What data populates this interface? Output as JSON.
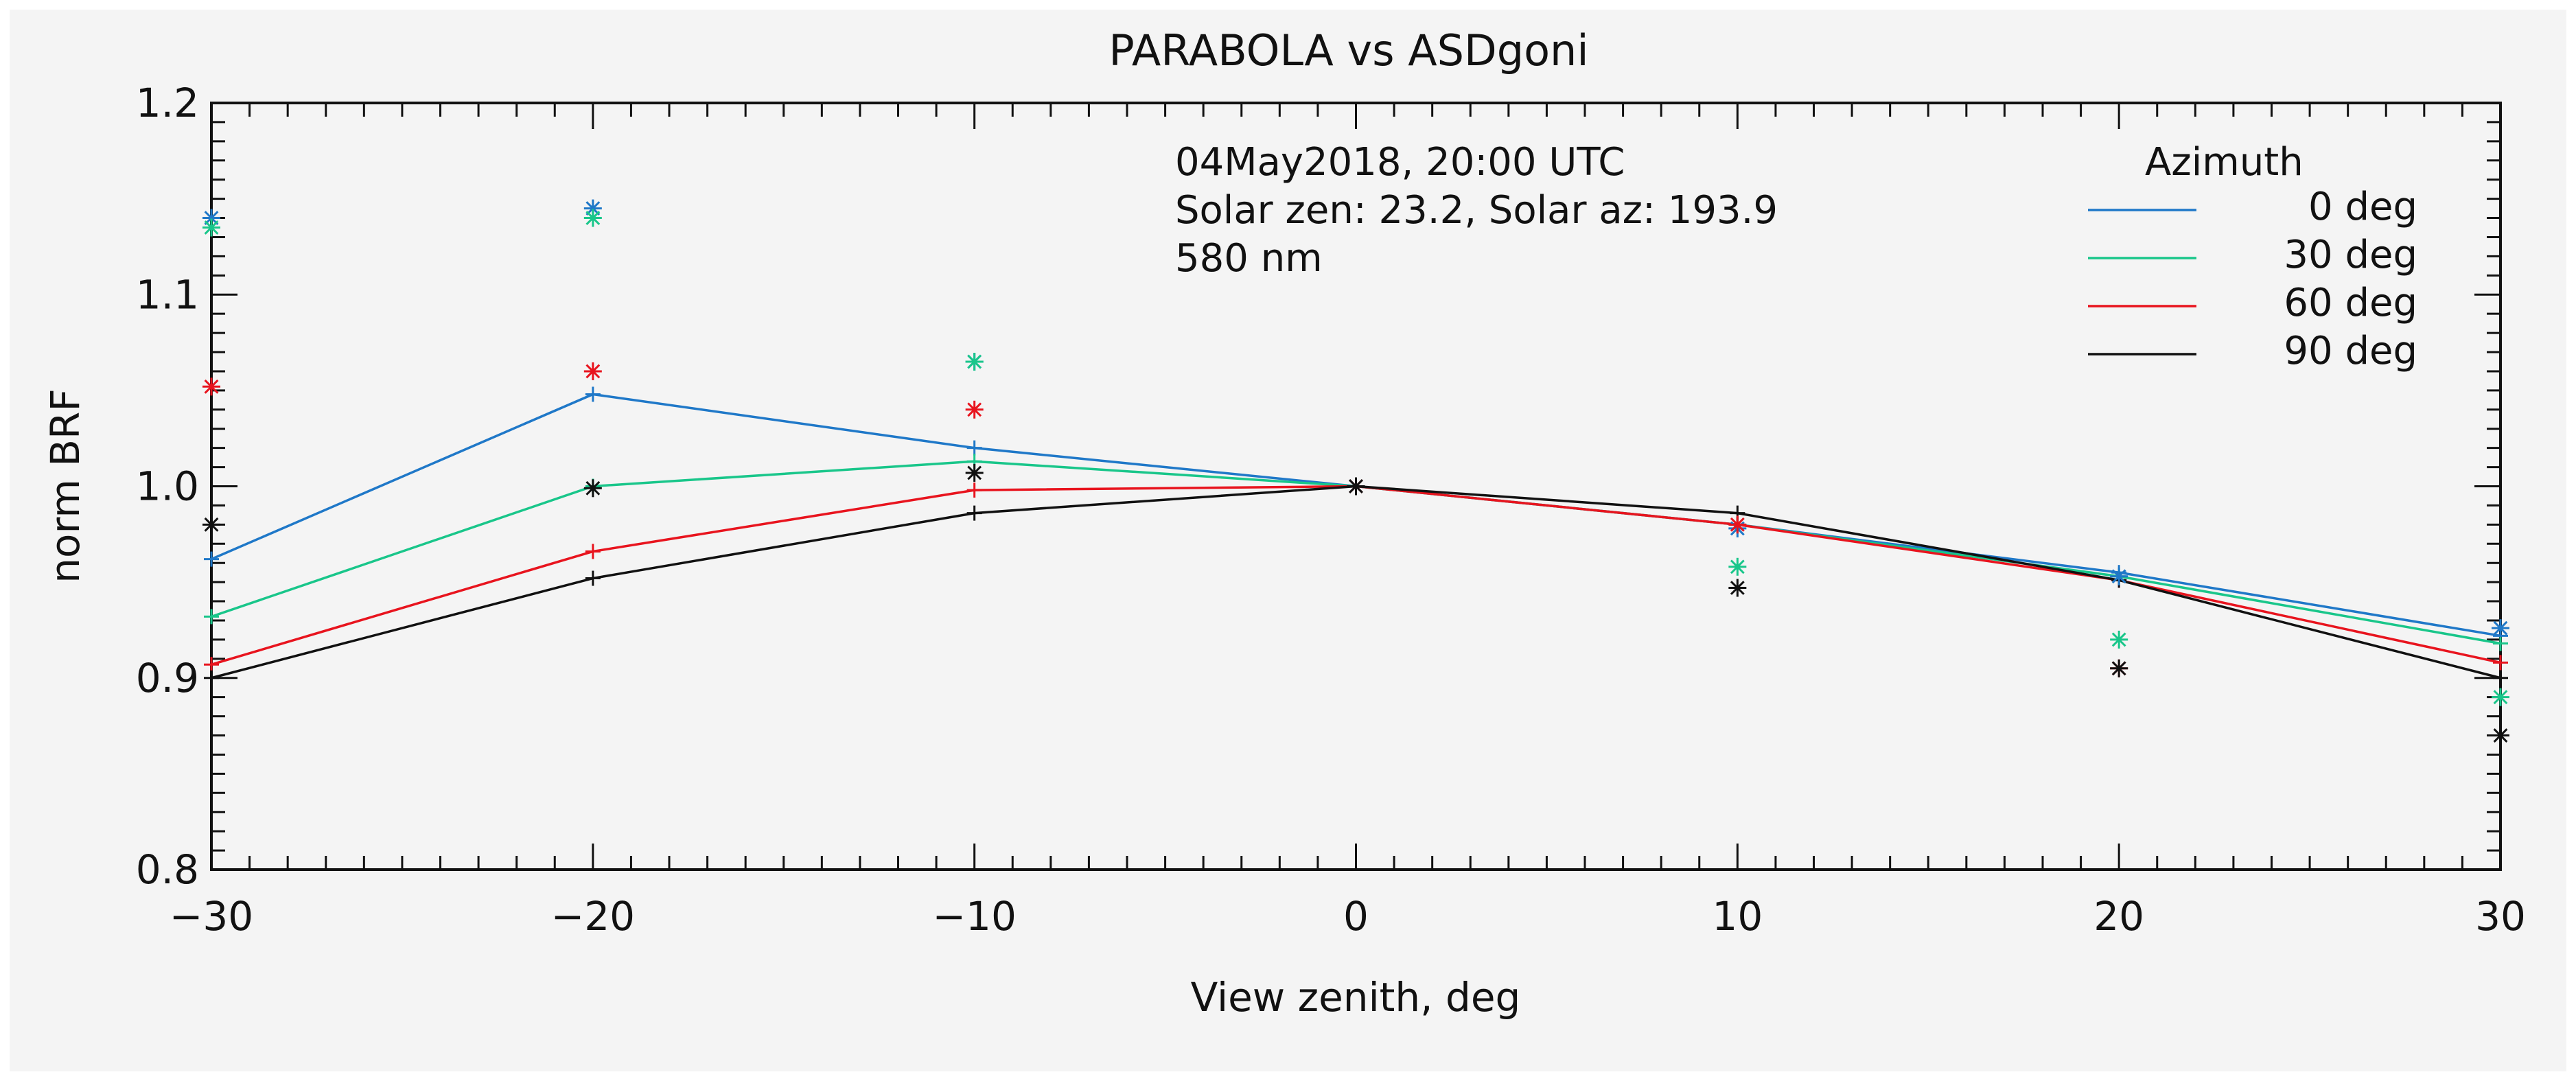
{
  "chart_data": {
    "type": "line",
    "title": "PARABOLA vs ASDgoni",
    "xlabel": "View zenith, deg",
    "ylabel": "norm BRF",
    "xlim": [
      -30,
      30
    ],
    "ylim": [
      0.8,
      1.2
    ],
    "x_ticks": [
      "−30",
      "−20",
      "−10",
      "0",
      "10",
      "20",
      "30"
    ],
    "x_tick_values": [
      -30,
      -20,
      -10,
      0,
      10,
      20,
      30
    ],
    "y_ticks": [
      "0.8",
      "0.9",
      "1.0",
      "1.1",
      "1.2"
    ],
    "y_tick_values": [
      0.8,
      0.9,
      1.0,
      1.1,
      1.2
    ],
    "annotation_lines": [
      "04May2018, 20:00 UTC",
      "Solar zen: 23.2, Solar az: 193.9",
      "580 nm"
    ],
    "legend_title": "Azimuth",
    "legend_position": "top-right",
    "x": [
      -30,
      -20,
      -10,
      0,
      10,
      20,
      30
    ],
    "series": [
      {
        "name": "0 deg",
        "color": "#1f78c8",
        "values": [
          0.962,
          1.048,
          1.02,
          1.0,
          0.98,
          0.955,
          0.922
        ],
        "points": [
          1.14,
          1.145,
          1.065,
          1.0,
          0.978,
          0.953,
          0.926
        ]
      },
      {
        "name": "30 deg",
        "color": "#19c68a",
        "values": [
          0.932,
          1.0,
          1.013,
          1.0,
          0.98,
          0.953,
          0.918
        ],
        "points": [
          1.135,
          1.14,
          1.065,
          1.0,
          0.958,
          0.92,
          0.89
        ]
      },
      {
        "name": "60 deg",
        "color": "#e8141e",
        "values": [
          0.907,
          0.966,
          0.998,
          1.0,
          0.98,
          0.951,
          0.908
        ],
        "points": [
          1.052,
          1.06,
          1.04,
          1.0,
          0.98,
          0.905,
          null
        ]
      },
      {
        "name": "90 deg",
        "color": "#111111",
        "values": [
          0.9,
          0.952,
          0.986,
          1.0,
          0.986,
          0.951,
          0.9
        ],
        "points": [
          0.98,
          0.999,
          1.007,
          1.0,
          0.947,
          0.905,
          0.87
        ]
      }
    ]
  }
}
